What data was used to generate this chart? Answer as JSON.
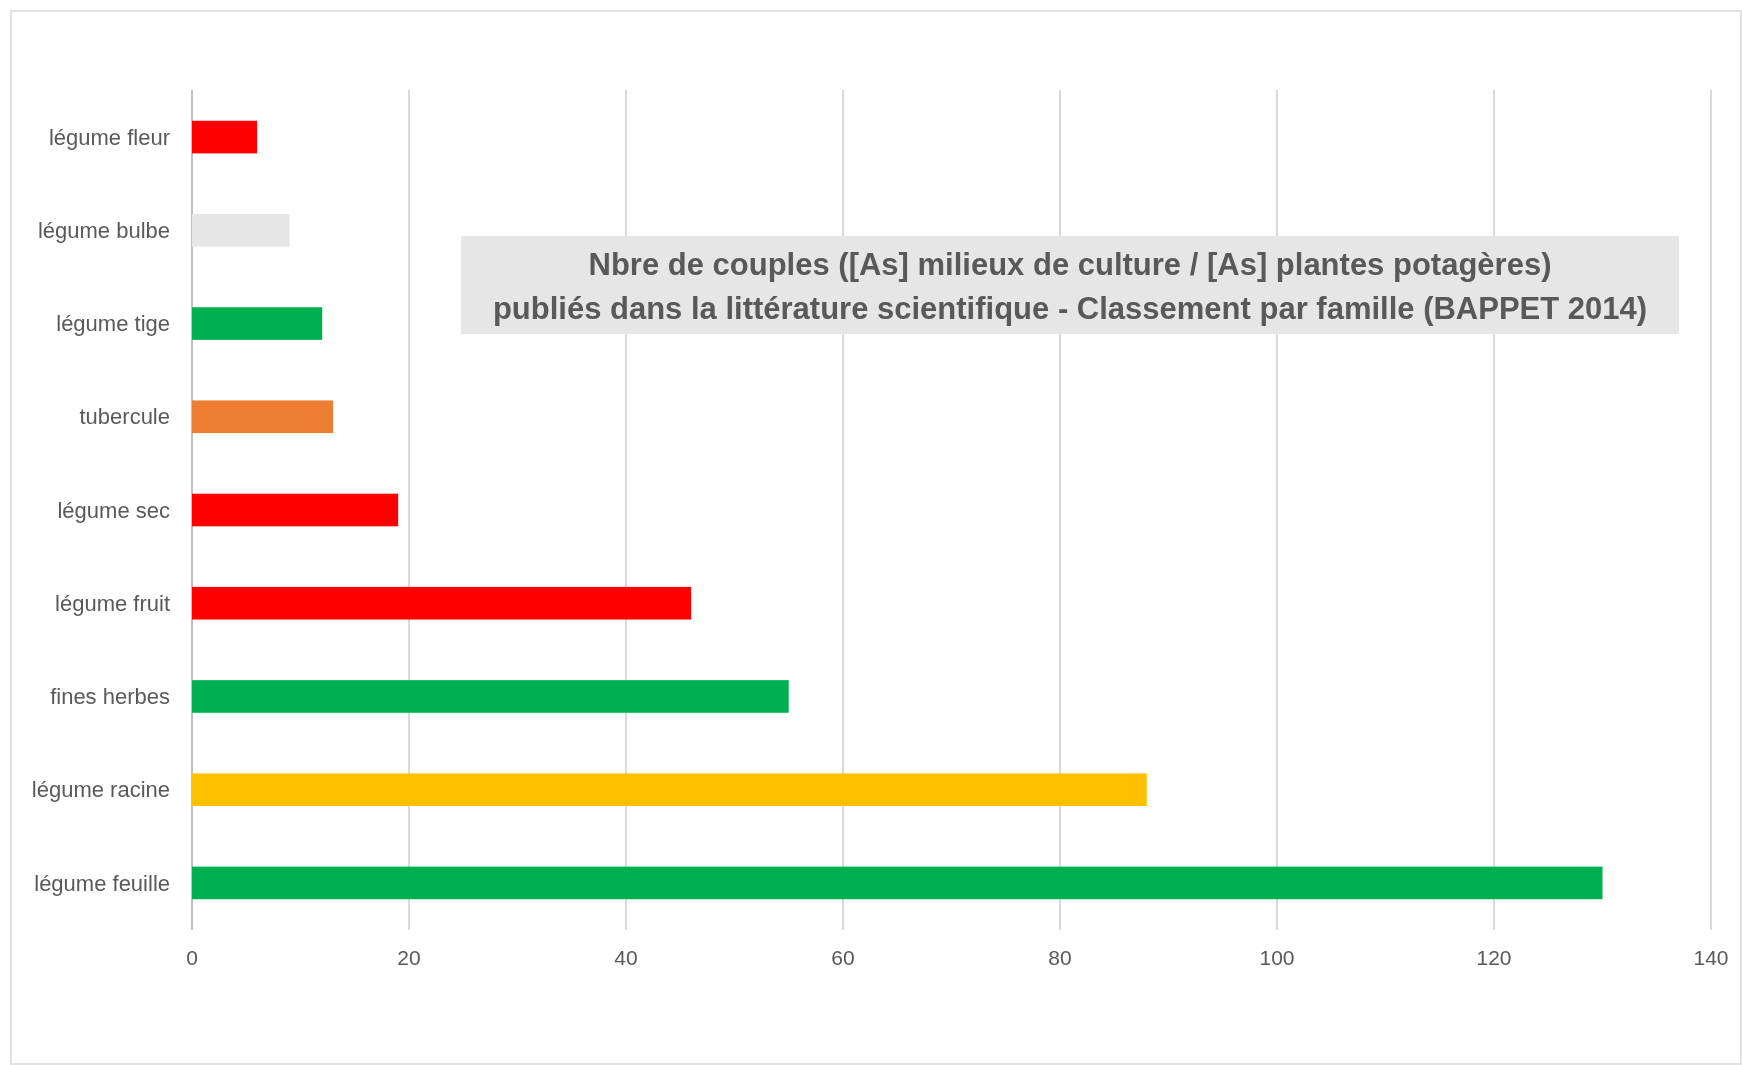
{
  "chart_data": {
    "type": "bar",
    "orientation": "horizontal",
    "title": "Nbre de couples ([As] milieux de culture / [As] plantes potagères)\npubliés dans la littérature scientifique - Classement par famille (BAPPET 2014)",
    "categories": [
      "légume fleur",
      "légume bulbe",
      "légume tige",
      "tubercule",
      "légume sec",
      "légume fruit",
      "fines herbes",
      "légume racine",
      "légume feuille"
    ],
    "values": [
      6,
      9,
      12,
      13,
      19,
      46,
      55,
      88,
      130
    ],
    "colors": [
      "#ff0000",
      "#e6e6e6",
      "#00b050",
      "#ed7d31",
      "#ff0000",
      "#ff0000",
      "#00b050",
      "#ffc000",
      "#00b050"
    ],
    "xlim": [
      0,
      140
    ],
    "xticks": [
      0,
      20,
      40,
      60,
      80,
      100,
      120,
      140
    ],
    "grid": "x"
  }
}
